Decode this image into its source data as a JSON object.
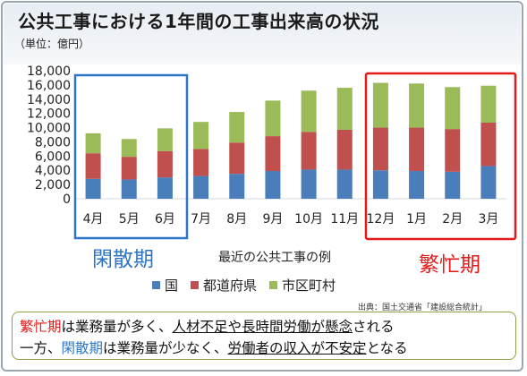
{
  "title": "公共工事における1年間の工事出来高の状況",
  "unit": "（単位：億円）",
  "chart_data": {
    "type": "bar",
    "stacked": true,
    "categories": [
      "4月",
      "5月",
      "6月",
      "7月",
      "8月",
      "9月",
      "10月",
      "11月",
      "12月",
      "1月",
      "2月",
      "3月"
    ],
    "series": [
      {
        "name": "国",
        "color": "#4a7ebb",
        "values": [
          2800,
          2700,
          3000,
          3200,
          3500,
          3900,
          4100,
          4100,
          4000,
          3900,
          3800,
          4600
        ]
      },
      {
        "name": "都道府県",
        "color": "#c0504d",
        "values": [
          3600,
          3200,
          3700,
          3800,
          4400,
          4900,
          5300,
          5600,
          6000,
          6100,
          6000,
          6100
        ]
      },
      {
        "name": "市区町村",
        "color": "#9bbb59",
        "values": [
          2800,
          2500,
          3200,
          3800,
          4300,
          5000,
          5800,
          5900,
          6300,
          6200,
          5900,
          5200
        ]
      }
    ],
    "ylim": [
      0,
      18000
    ],
    "yticks": [
      "0",
      "2,000",
      "4,000",
      "6,000",
      "8,000",
      "10,000",
      "12,000",
      "14,000",
      "16,000",
      "18,000"
    ],
    "xlabel": "最近の公共工事の例",
    "ylabel": ""
  },
  "season_off": "閑散期",
  "season_peak": "繁忙期",
  "legend": [
    "国",
    "都道府県",
    "市区町村"
  ],
  "source": "出典：国土交通省「建設総合統計」",
  "note": {
    "l1_a": "繁忙期",
    "l1_b": "は業務量が多く、",
    "l1_c": "人材不足や長時間労働が懸念",
    "l1_d": "される",
    "l2_a": "一方、",
    "l2_b": "閑散期",
    "l2_c": "は業務量が少なく、",
    "l2_d": "労働者の収入が不安定",
    "l2_e": "となる"
  }
}
